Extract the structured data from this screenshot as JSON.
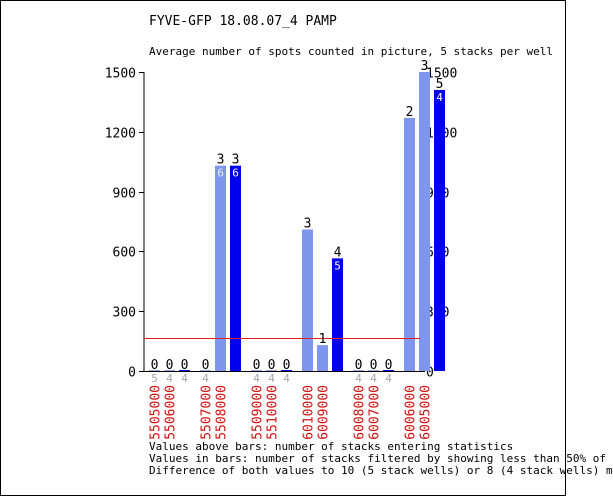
{
  "chart_data": {
    "type": "bar",
    "title": "FYVE-GFP 18.08.07_4 PAMP",
    "subtitle": "Average number of spots counted in picture, 5 stacks per well",
    "ylim": [
      0,
      1500
    ],
    "yticks": [
      0,
      300,
      600,
      900,
      1200,
      1500
    ],
    "grid": false,
    "threshold_line": {
      "value": 165,
      "color": "#e02020"
    },
    "colors": {
      "light": "#7f96ef",
      "dark": "#0000ee",
      "faint": "#a6a6a6",
      "category": "#d01010"
    },
    "bars": [
      {
        "category": "5505000",
        "value": 0,
        "above": "0",
        "inside": "5",
        "style": "light"
      },
      {
        "category": "5506000",
        "value": 0,
        "above": "0",
        "inside": "4",
        "style": "light"
      },
      {
        "category": "",
        "value": 0,
        "above": "0",
        "inside": "4",
        "style": "dark"
      },
      {
        "category": "5507000",
        "value": 0,
        "above": "0",
        "inside": "4",
        "style": "light"
      },
      {
        "category": "5508000",
        "value": 1030,
        "above": "3",
        "inside": "6",
        "style": "light"
      },
      {
        "category": "",
        "value": 1030,
        "above": "3",
        "inside": "6",
        "style": "dark"
      },
      {
        "category": "5509000",
        "value": 0,
        "above": "0",
        "inside": "4",
        "style": "light"
      },
      {
        "category": "5510000",
        "value": 0,
        "above": "0",
        "inside": "4",
        "style": "light"
      },
      {
        "category": "",
        "value": 0,
        "above": "0",
        "inside": "4",
        "style": "dark"
      },
      {
        "category": "6010000",
        "value": 710,
        "above": "3",
        "inside": "",
        "style": "light"
      },
      {
        "category": "6009000",
        "value": 130,
        "above": "1",
        "inside": "",
        "style": "light"
      },
      {
        "category": "",
        "value": 565,
        "above": "4",
        "inside": "5",
        "style": "dark"
      },
      {
        "category": "6008000",
        "value": 0,
        "above": "0",
        "inside": "4",
        "style": "light"
      },
      {
        "category": "6007000",
        "value": 0,
        "above": "0",
        "inside": "4",
        "style": "light"
      },
      {
        "category": "",
        "value": 0,
        "above": "0",
        "inside": "4",
        "style": "dark"
      },
      {
        "category": "6006000",
        "value": 1270,
        "above": "2",
        "inside": "",
        "style": "light"
      },
      {
        "category": "6005000",
        "value": 1500,
        "above": "3",
        "inside": "",
        "style": "light"
      },
      {
        "category": "",
        "value": 1410,
        "above": "5",
        "inside": "4",
        "style": "dark"
      }
    ]
  },
  "notes": [
    "Values above bars: number of stacks entering statistics",
    "Values in bars: number of stacks filtered by showing less than 50% of",
    "Difference of both values to 10 (5 stack wells) or 8 (4 stack wells) m"
  ]
}
